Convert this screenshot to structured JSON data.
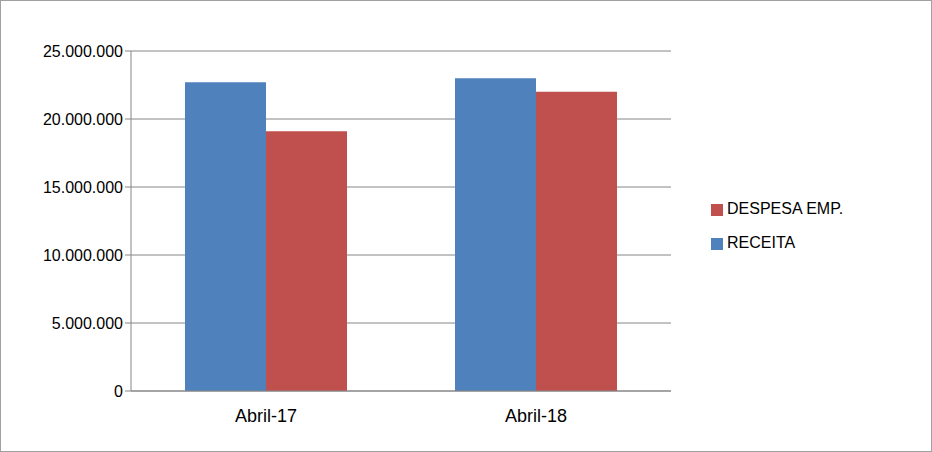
{
  "chart_data": {
    "type": "bar",
    "categories": [
      "Abril-17",
      "Abril-18"
    ],
    "series": [
      {
        "name": "RECEITA",
        "color": "#4f81bd",
        "values": [
          22700000,
          23000000
        ]
      },
      {
        "name": "DESPESA EMP.",
        "color": "#c0504d",
        "values": [
          19100000,
          22000000
        ]
      }
    ],
    "ylim": [
      0,
      25000000
    ],
    "yticks": [
      0,
      {
        "value": 5000000,
        "label": "5.000.000"
      },
      {
        "value": 10000000,
        "label": "10.000.000"
      },
      {
        "value": 15000000,
        "label": "15.000.000"
      },
      {
        "value": 20000000,
        "label": "20.000.000"
      },
      {
        "value": 25000000,
        "label": "25.000.000"
      }
    ],
    "grid": true,
    "legend": "right"
  }
}
